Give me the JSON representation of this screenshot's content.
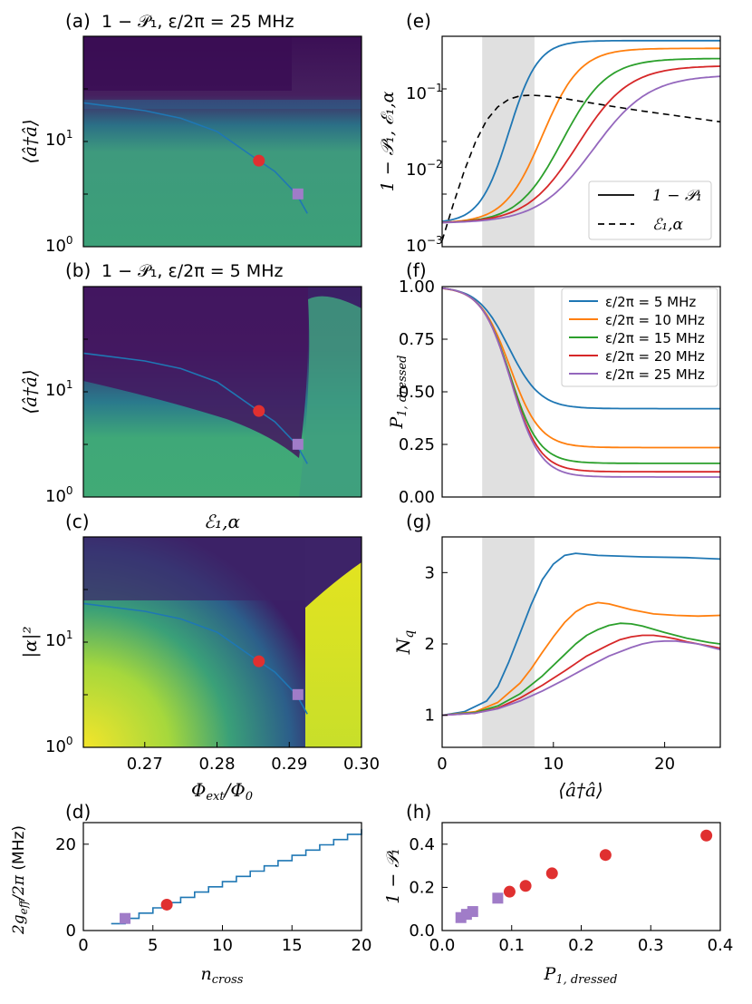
{
  "colors": {
    "blue": "#1f77b4",
    "orange": "#ff7f0e",
    "green": "#2ca02c",
    "red": "#d62728",
    "purple": "#9467bd",
    "marker_red": "#e03030",
    "marker_purple": "#a07cc8",
    "shade": "#e0e0e0",
    "heat_dark": "#3b0f55",
    "heat_mid": "#2a7f8e",
    "heat_green": "#3fa878",
    "heat_yellow": "#f4e52a"
  },
  "chart_data": [
    {
      "id": "a",
      "type": "heatmap",
      "panel": "(a)",
      "title": "1 − 𝒫₁, ε/2π = 25 MHz",
      "xlabel": "",
      "ylabel": "⟨â†â⟩",
      "xlim": [
        0.2615,
        0.3
      ],
      "ylim": [
        1,
        80
      ],
      "yscale": "log",
      "yticks": [
        "10⁰",
        "10¹"
      ],
      "overlay_line": {
        "x": [
          0.2615,
          0.27,
          0.275,
          0.28,
          0.285,
          0.288,
          0.291,
          0.2925
        ],
        "y": [
          20,
          17,
          14.5,
          11,
          6.5,
          4.8,
          3,
          2
        ]
      },
      "markers": [
        {
          "shape": "circle",
          "x": 0.2858,
          "y": 6
        },
        {
          "shape": "square",
          "x": 0.2912,
          "y": 3
        }
      ]
    },
    {
      "id": "b",
      "type": "heatmap",
      "panel": "(b)",
      "title": "1 − 𝒫₁, ε/2π = 5 MHz",
      "xlabel": "",
      "ylabel": "⟨â†â⟩",
      "xlim": [
        0.2615,
        0.3
      ],
      "ylim": [
        1,
        80
      ],
      "yscale": "log",
      "yticks": [
        "10⁰",
        "10¹"
      ],
      "overlay_line": {
        "x": [
          0.2615,
          0.27,
          0.275,
          0.28,
          0.285,
          0.288,
          0.291,
          0.2925
        ],
        "y": [
          20,
          17,
          14.5,
          11,
          6.5,
          4.8,
          3,
          2
        ]
      },
      "markers": [
        {
          "shape": "circle",
          "x": 0.2858,
          "y": 6
        },
        {
          "shape": "square",
          "x": 0.2912,
          "y": 3
        }
      ]
    },
    {
      "id": "c",
      "type": "heatmap",
      "panel": "(c)",
      "title": "ℰ₁,α",
      "xlabel": "Φext/Φ0",
      "ylabel": "|α|²",
      "xlim": [
        0.2615,
        0.3
      ],
      "ylim": [
        1,
        80
      ],
      "yscale": "log",
      "yticks": [
        "10⁰",
        "10¹"
      ],
      "xticks": [
        "0.27",
        "0.28",
        "0.29",
        "0.30"
      ],
      "xtick_values": [
        0.27,
        0.28,
        0.29,
        0.3
      ],
      "overlay_line": {
        "x": [
          0.2615,
          0.27,
          0.275,
          0.28,
          0.285,
          0.288,
          0.291,
          0.2925
        ],
        "y": [
          20,
          17,
          14.5,
          11,
          6.5,
          4.8,
          3,
          2
        ]
      },
      "markers": [
        {
          "shape": "circle",
          "x": 0.2858,
          "y": 6
        },
        {
          "shape": "square",
          "x": 0.2912,
          "y": 3
        }
      ]
    },
    {
      "id": "d",
      "type": "line",
      "panel": "(d)",
      "xlabel": "ncross",
      "ylabel": "2geff/2π (MHz)",
      "xlim": [
        0,
        20
      ],
      "ylim": [
        0,
        25
      ],
      "xticks": [
        "0",
        "5",
        "10",
        "15",
        "20"
      ],
      "xtick_values": [
        0,
        5,
        10,
        15,
        20
      ],
      "yticks": [
        "0",
        "20"
      ],
      "ytick_values": [
        0,
        20
      ],
      "series": [
        {
          "name": "staircase",
          "x": [
            2,
            20
          ],
          "y": [
            1.6,
            23.5
          ]
        }
      ],
      "markers": [
        {
          "shape": "circle",
          "x": 6,
          "y": 6.0
        },
        {
          "shape": "square",
          "x": 3,
          "y": 2.8
        }
      ]
    },
    {
      "id": "e",
      "type": "line",
      "panel": "(e)",
      "xlabel": "",
      "ylabel": "1 − 𝒫₁, ℰ₁,α",
      "xlim": [
        0,
        25
      ],
      "ylim": [
        0.001,
        0.5
      ],
      "yscale": "log",
      "yticks": [
        "10⁻³",
        "10⁻²",
        "10⁻¹"
      ],
      "shaded_x": [
        3.6,
        8.3
      ],
      "series": [
        {
          "name": "ε/2π=5 MHz",
          "color": "blue",
          "base": 0.002,
          "plateau": 0.44,
          "x0": 6.0,
          "w": 1.3
        },
        {
          "name": "ε/2π=10 MHz",
          "color": "orange",
          "base": 0.002,
          "plateau": 0.35,
          "x0": 9.0,
          "w": 1.7
        },
        {
          "name": "ε/2π=15 MHz",
          "color": "green",
          "base": 0.002,
          "plateau": 0.26,
          "x0": 10.8,
          "w": 2.0
        },
        {
          "name": "ε/2π=20 MHz",
          "color": "red",
          "base": 0.002,
          "plateau": 0.21,
          "x0": 12.2,
          "w": 2.3
        },
        {
          "name": "ε/2π=25 MHz",
          "color": "purple",
          "base": 0.002,
          "plateau": 0.16,
          "x0": 13.6,
          "w": 2.5
        }
      ],
      "dashed": {
        "name": "ℰ₁,α",
        "x": [
          0,
          1,
          2,
          3,
          4,
          5,
          6,
          7,
          8,
          10,
          12,
          15,
          18,
          21,
          25
        ],
        "y": [
          0.0012,
          0.0035,
          0.0095,
          0.022,
          0.042,
          0.062,
          0.078,
          0.086,
          0.088,
          0.084,
          0.075,
          0.064,
          0.055,
          0.048,
          0.04
        ]
      },
      "legend": {
        "placement": "lower-right",
        "entries": [
          "1 − 𝒫₁",
          "ℰ₁,α"
        ]
      }
    },
    {
      "id": "f",
      "type": "line",
      "panel": "(f)",
      "xlabel": "",
      "ylabel": "P1,dressed",
      "xlim": [
        0,
        25
      ],
      "ylim": [
        0,
        1
      ],
      "yticks": [
        "0.00",
        "0.25",
        "0.50",
        "0.75",
        "1.00"
      ],
      "ytick_values": [
        0,
        0.25,
        0.5,
        0.75,
        1.0
      ],
      "shaded_x": [
        3.6,
        8.3
      ],
      "series": [
        {
          "name": "ε/2π = 5 MHz",
          "color": "blue",
          "plateau": 0.42,
          "x0": 6.0,
          "w": 1.4
        },
        {
          "name": "ε/2π = 10 MHz",
          "color": "orange",
          "plateau": 0.235,
          "x0": 6.1,
          "w": 1.35
        },
        {
          "name": "ε/2π = 15 MHz",
          "color": "green",
          "plateau": 0.16,
          "x0": 6.1,
          "w": 1.3
        },
        {
          "name": "ε/2π = 20 MHz",
          "color": "red",
          "plateau": 0.12,
          "x0": 6.15,
          "w": 1.3
        },
        {
          "name": "ε/2π = 25 MHz",
          "color": "purple",
          "plateau": 0.095,
          "x0": 6.2,
          "w": 1.3
        }
      ],
      "legend": {
        "placement": "top-right"
      }
    },
    {
      "id": "g",
      "type": "line",
      "panel": "(g)",
      "xlabel": "⟨â†â⟩",
      "ylabel": "Nq",
      "xlim": [
        0,
        25
      ],
      "ylim": [
        0.55,
        3.5
      ],
      "xticks": [
        "0",
        "10",
        "20"
      ],
      "xtick_values": [
        0,
        10,
        20
      ],
      "yticks": [
        "1",
        "2",
        "3"
      ],
      "ytick_values": [
        1,
        2,
        3
      ],
      "shaded_x": [
        3.6,
        8.3
      ],
      "series": [
        {
          "name": "ε/2π=5 MHz",
          "color": "blue",
          "x": [
            0,
            2,
            4,
            5,
            6,
            7,
            8,
            9,
            10,
            11,
            12,
            14,
            18,
            22,
            25
          ],
          "y": [
            1.0,
            1.05,
            1.2,
            1.4,
            1.75,
            2.15,
            2.55,
            2.9,
            3.12,
            3.24,
            3.27,
            3.24,
            3.22,
            3.21,
            3.19
          ]
        },
        {
          "name": "ε/2π=10 MHz",
          "color": "orange",
          "x": [
            0,
            3,
            5,
            7,
            8,
            9,
            10,
            11,
            12,
            13,
            14,
            15,
            17,
            19,
            21,
            23,
            25
          ],
          "y": [
            1.0,
            1.05,
            1.18,
            1.45,
            1.65,
            1.88,
            2.1,
            2.3,
            2.45,
            2.54,
            2.58,
            2.56,
            2.48,
            2.42,
            2.4,
            2.39,
            2.4
          ]
        },
        {
          "name": "ε/2π=15 MHz",
          "color": "green",
          "x": [
            0,
            3,
            5,
            7,
            9,
            11,
            12,
            13,
            14,
            15,
            16,
            17,
            18,
            20,
            22,
            24,
            25
          ],
          "y": [
            1.0,
            1.04,
            1.13,
            1.3,
            1.55,
            1.85,
            2.0,
            2.12,
            2.2,
            2.26,
            2.29,
            2.28,
            2.25,
            2.16,
            2.08,
            2.02,
            2.0
          ]
        },
        {
          "name": "ε/2π=20 MHz",
          "color": "red",
          "x": [
            0,
            3,
            5,
            7,
            9,
            11,
            13,
            15,
            16,
            17,
            18,
            19,
            20,
            21,
            22,
            23,
            24,
            25
          ],
          "y": [
            1.0,
            1.03,
            1.1,
            1.24,
            1.42,
            1.62,
            1.83,
            1.99,
            2.06,
            2.1,
            2.12,
            2.12,
            2.1,
            2.07,
            2.03,
            2.0,
            1.97,
            1.94
          ]
        },
        {
          "name": "ε/2π=25 MHz",
          "color": "purple",
          "x": [
            0,
            3,
            5,
            7,
            9,
            11,
            13,
            15,
            17,
            18,
            19,
            20,
            21,
            22,
            23,
            24,
            25
          ],
          "y": [
            1.0,
            1.03,
            1.09,
            1.2,
            1.34,
            1.5,
            1.67,
            1.83,
            1.95,
            2.0,
            2.03,
            2.04,
            2.04,
            2.02,
            2.0,
            1.96,
            1.92
          ]
        }
      ]
    },
    {
      "id": "h",
      "type": "scatter",
      "panel": "(h)",
      "xlabel": "P1,dressed",
      "ylabel": "1 − 𝒫₁",
      "xlim": [
        0,
        0.4
      ],
      "ylim": [
        0,
        0.5
      ],
      "xticks": [
        "0.0",
        "0.1",
        "0.2",
        "0.3",
        "0.4"
      ],
      "xtick_values": [
        0,
        0.1,
        0.2,
        0.3,
        0.4
      ],
      "yticks": [
        "0.0",
        "0.2",
        "0.4"
      ],
      "ytick_values": [
        0,
        0.2,
        0.4
      ],
      "series": [
        {
          "name": "circles",
          "shape": "circle",
          "color": "marker_red",
          "x": [
            0.097,
            0.12,
            0.158,
            0.235,
            0.38
          ],
          "y": [
            0.18,
            0.207,
            0.265,
            0.35,
            0.44
          ]
        },
        {
          "name": "squares",
          "shape": "square",
          "color": "marker_purple",
          "x": [
            0.027,
            0.035,
            0.044,
            0.08
          ],
          "y": [
            0.06,
            0.075,
            0.088,
            0.15
          ]
        }
      ]
    }
  ]
}
